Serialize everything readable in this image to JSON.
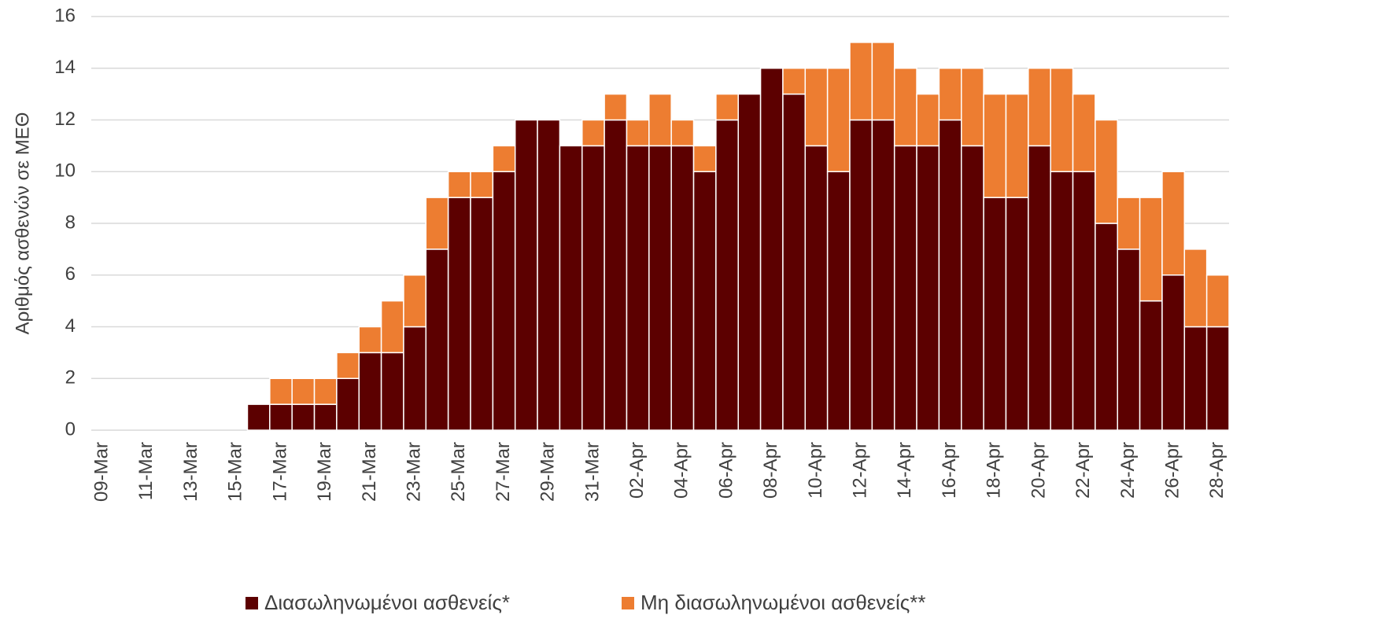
{
  "chart_data": {
    "type": "stacked_bar",
    "y_label": "Αριθμός ασθενών σε ΜΕΘ",
    "categories": [
      "09-Mar",
      null,
      "11-Mar",
      null,
      "13-Mar",
      null,
      "15-Mar",
      null,
      "17-Mar",
      null,
      "19-Mar",
      null,
      "21-Mar",
      null,
      "23-Mar",
      null,
      "25-Mar",
      null,
      "27-Mar",
      null,
      "29-Mar",
      null,
      "31-Mar",
      null,
      "02-Apr",
      null,
      "04-Apr",
      null,
      "06-Apr",
      null,
      "08-Apr",
      null,
      "10-Apr",
      null,
      "12-Apr",
      null,
      "14-Apr",
      null,
      "16-Apr",
      null,
      "18-Apr",
      null,
      "20-Apr",
      null,
      "22-Apr",
      null,
      "24-Apr",
      null,
      "26-Apr",
      null,
      "28-Apr"
    ],
    "series": [
      {
        "name": "Διασωληνωμένοι ασθενείς*",
        "color": "#5c0000",
        "values": [
          0,
          0,
          0,
          0,
          0,
          0,
          0,
          1,
          1,
          1,
          1,
          2,
          3,
          3,
          4,
          7,
          9,
          9,
          10,
          12,
          12,
          11,
          11,
          12,
          11,
          11,
          11,
          10,
          12,
          13,
          14,
          13,
          11,
          10,
          12,
          12,
          11,
          11,
          12,
          11,
          9,
          9,
          11,
          10,
          10,
          8,
          7,
          5,
          6,
          4,
          4
        ]
      },
      {
        "name": "Μη διασωληνωμένοι ασθενείς**",
        "color": "#ed7d31",
        "values": [
          0,
          0,
          0,
          0,
          0,
          0,
          0,
          0,
          1,
          1,
          1,
          1,
          1,
          2,
          2,
          2,
          1,
          1,
          1,
          0,
          0,
          0,
          1,
          1,
          1,
          2,
          1,
          1,
          1,
          0,
          0,
          1,
          3,
          4,
          3,
          3,
          3,
          2,
          2,
          3,
          4,
          4,
          3,
          4,
          3,
          4,
          2,
          4,
          4,
          3,
          2
        ]
      }
    ],
    "ylim": [
      0,
      16
    ],
    "yticks": [
      0,
      2,
      4,
      6,
      8,
      10,
      12,
      14,
      16
    ],
    "grid": true,
    "legend": "bottom"
  }
}
